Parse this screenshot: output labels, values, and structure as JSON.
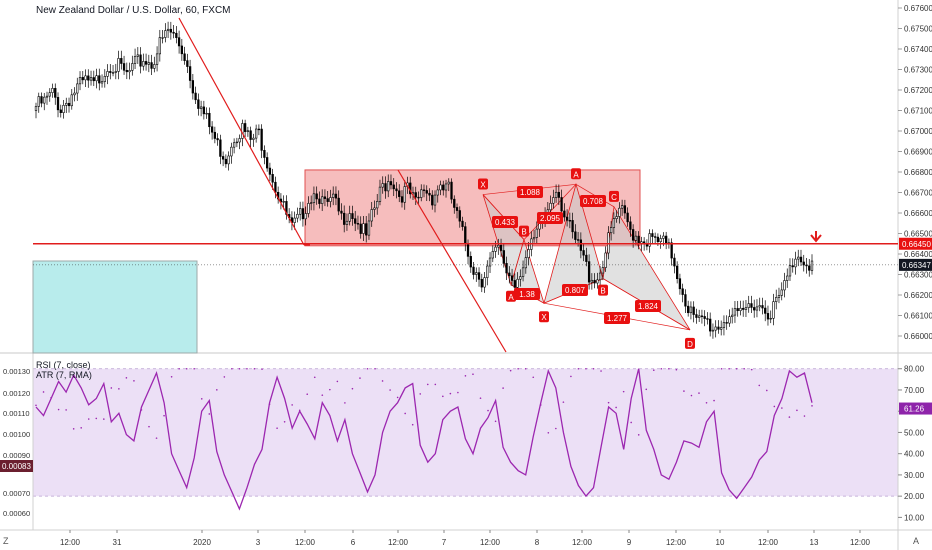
{
  "title": "New Zealand Dollar / U.S. Dollar, 60, FXCM",
  "colors": {
    "up": "#000000",
    "down": "#000000",
    "pattern_fill": "#c9c9c9",
    "range_fill": "#f4b2b2",
    "range_stroke": "#e05050",
    "line": "#e11c1c",
    "rsi_line": "#9c27b0",
    "rsi_band": "#e6d6f2",
    "atr_dots": "#9c27b0",
    "label_bg": "#e81010",
    "box_fill": "#b8ecec"
  },
  "chart_data": [
    {
      "type": "candlestick",
      "symbol": "NZDUSD",
      "timeframe": "60",
      "ylim": [
        0.6595,
        0.6771
      ],
      "y_ticks": [
        "0.67600",
        "0.67500",
        "0.67400",
        "0.67300",
        "0.67200",
        "0.67100",
        "0.67000",
        "0.66900",
        "0.66800",
        "0.66700",
        "0.66600",
        "0.66500",
        "0.66400",
        "0.66300",
        "0.66200",
        "0.66100",
        "0.66000"
      ],
      "x_ticks": [
        "12:00",
        "31",
        "2020",
        "3",
        "12:00",
        "6",
        "12:00",
        "7",
        "12:00",
        "8",
        "12:00",
        "9",
        "12:00",
        "10",
        "12:00",
        "13",
        "12:00"
      ],
      "price_labels": [
        {
          "value": "0.66450",
          "kind": "level"
        },
        {
          "value": "0.66347",
          "kind": "last"
        }
      ],
      "horizontal_level": 0.6645,
      "last_price": 0.66347,
      "close_path": [
        [
          0,
          0.6712
        ],
        [
          3,
          0.6714
        ],
        [
          6,
          0.6718
        ],
        [
          9,
          0.6711
        ],
        [
          12,
          0.6716
        ],
        [
          15,
          0.6721
        ],
        [
          18,
          0.6724
        ],
        [
          21,
          0.6722
        ],
        [
          24,
          0.6728
        ],
        [
          27,
          0.6733
        ],
        [
          30,
          0.6731
        ],
        [
          33,
          0.6727
        ],
        [
          36,
          0.6732
        ],
        [
          39,
          0.6735
        ],
        [
          42,
          0.6733
        ],
        [
          45,
          0.6742
        ],
        [
          48,
          0.6749
        ],
        [
          51,
          0.6745
        ],
        [
          54,
          0.6737
        ],
        [
          57,
          0.6722
        ],
        [
          60,
          0.6711
        ],
        [
          63,
          0.6702
        ],
        [
          66,
          0.6693
        ],
        [
          69,
          0.6687
        ],
        [
          72,
          0.6698
        ],
        [
          75,
          0.6701
        ],
        [
          78,
          0.6695
        ],
        [
          81,
          0.6699
        ],
        [
          84,
          0.6686
        ],
        [
          87,
          0.6673
        ],
        [
          90,
          0.6662
        ],
        [
          93,
          0.6652
        ],
        [
          96,
          0.6658
        ],
        [
          99,
          0.6667
        ],
        [
          102,
          0.6671
        ],
        [
          105,
          0.6663
        ],
        [
          108,
          0.6666
        ],
        [
          111,
          0.6657
        ],
        [
          114,
          0.6662
        ],
        [
          117,
          0.6655
        ],
        [
          120,
          0.6648
        ],
        [
          123,
          0.6662
        ],
        [
          126,
          0.6673
        ],
        [
          129,
          0.6677
        ],
        [
          132,
          0.6669
        ],
        [
          135,
          0.6671
        ],
        [
          138,
          0.6664
        ],
        [
          141,
          0.6672
        ],
        [
          144,
          0.6668
        ],
        [
          147,
          0.6674
        ],
        [
          150,
          0.6671
        ],
        [
          153,
          0.6658
        ],
        [
          156,
          0.6645
        ],
        [
          159,
          0.6633
        ],
        [
          162,
          0.6628
        ],
        [
          165,
          0.6636
        ],
        [
          168,
          0.6642
        ],
        [
          171,
          0.6632
        ],
        [
          174,
          0.6626
        ],
        [
          177,
          0.6636
        ],
        [
          180,
          0.6643
        ],
        [
          183,
          0.6652
        ],
        [
          186,
          0.6662
        ],
        [
          189,
          0.6674
        ],
        [
          192,
          0.666
        ],
        [
          195,
          0.6648
        ],
        [
          198,
          0.6641
        ],
        [
          201,
          0.663
        ],
        [
          204,
          0.6628
        ],
        [
          207,
          0.6641
        ],
        [
          210,
          0.6656
        ],
        [
          213,
          0.666
        ],
        [
          216,
          0.6652
        ],
        [
          219,
          0.6648
        ],
        [
          222,
          0.6647
        ],
        [
          225,
          0.6646
        ],
        [
          228,
          0.6645
        ],
        [
          231,
          0.664
        ],
        [
          234,
          0.6626
        ],
        [
          237,
          0.6614
        ],
        [
          240,
          0.6606
        ],
        [
          243,
          0.6608
        ],
        [
          246,
          0.6604
        ],
        [
          249,
          0.6606
        ],
        [
          252,
          0.6611
        ],
        [
          255,
          0.6608
        ],
        [
          258,
          0.6613
        ],
        [
          261,
          0.6617
        ],
        [
          264,
          0.6614
        ],
        [
          267,
          0.6612
        ],
        [
          270,
          0.6618
        ],
        [
          273,
          0.6628
        ],
        [
          276,
          0.664
        ],
        [
          279,
          0.6638
        ],
        [
          282,
          0.6635
        ]
      ],
      "harmonic_pattern": {
        "points": [
          {
            "label": "X",
            "value": 0.6669
          },
          {
            "label": "A",
            "value": 0.6625
          },
          {
            "label": "B",
            "value": 0.6647
          },
          {
            "label": "X",
            "value": 0.6616
          },
          {
            "label": "A",
            "value": 0.6674
          },
          {
            "label": "B",
            "value": 0.6628
          },
          {
            "label": "C",
            "value": 0.6663
          },
          {
            "label": "D",
            "value": 0.6603
          }
        ],
        "ratios": [
          "0.433",
          "1.38",
          "1.088",
          "2.095",
          "0.807",
          "0.708",
          "1.824",
          "1.277"
        ]
      },
      "range_box": {
        "top": 0.6681,
        "bottom": 0.6644
      }
    },
    {
      "type": "line",
      "series": [
        {
          "name": "RSI (7, close)",
          "last_value": "61.26"
        },
        {
          "name": "ATR (7, RMA)",
          "last_value": "0.00083"
        }
      ],
      "rsi_ylim": [
        5,
        86
      ],
      "rsi_band": [
        20,
        80
      ],
      "rsi_ticks": [
        "80.00",
        "70.00",
        "60.00",
        "50.00",
        "40.00",
        "30.00",
        "20.00",
        "10.00"
      ],
      "atr_ticks": [
        "0.00130",
        "0.00120",
        "0.00110",
        "0.00100",
        "0.00090",
        "0.00070",
        "0.00060"
      ],
      "rsi_values": [
        62,
        58,
        66,
        74,
        69,
        77,
        71,
        63,
        66,
        73,
        55,
        59,
        49,
        46,
        62,
        70,
        78,
        64,
        40,
        32,
        24,
        38,
        60,
        65,
        41,
        30,
        22,
        14,
        24,
        35,
        42,
        64,
        76,
        66,
        52,
        60,
        54,
        47,
        64,
        58,
        46,
        56,
        40,
        31,
        22,
        30,
        50,
        60,
        64,
        71,
        73,
        44,
        36,
        40,
        56,
        60,
        62,
        47,
        40,
        52,
        57,
        65,
        43,
        36,
        32,
        30,
        48,
        64,
        79,
        71,
        50,
        34,
        25,
        20,
        24,
        43,
        62,
        59,
        42,
        66,
        80,
        51,
        42,
        30,
        28,
        36,
        46,
        45,
        43,
        55,
        60,
        31,
        23,
        19,
        24,
        29,
        37,
        41,
        58,
        66,
        79,
        76,
        78,
        64
      ]
    }
  ],
  "bottom_corner_labels": {
    "left": "Z",
    "right": "A"
  }
}
